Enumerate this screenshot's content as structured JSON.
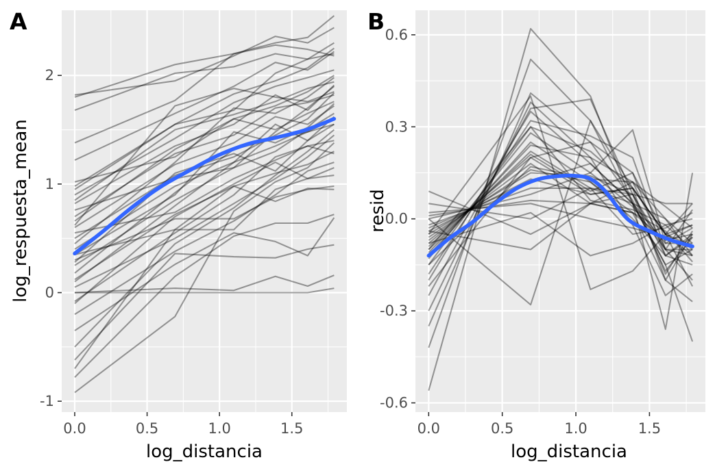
{
  "chart_data": [
    {
      "type": "line",
      "tag": "A",
      "xlabel": "log_distancia",
      "ylabel": "log_respuesta_mean",
      "xlim": [
        -0.09,
        1.88
      ],
      "ylim": [
        -1.1,
        2.6
      ],
      "xticks": [
        0.0,
        0.5,
        1.0,
        1.5
      ],
      "xtick_labels": [
        "0.0",
        "0.5",
        "1.0",
        "1.5"
      ],
      "yticks": [
        -1,
        0,
        1,
        2
      ],
      "ytick_labels": [
        "-1",
        "0",
        "1",
        "2"
      ],
      "grid": true,
      "x": [
        0.0,
        0.693,
        1.099,
        1.386,
        1.609,
        1.792
      ],
      "individual_color": "#000000",
      "individual_opacity": 0.38,
      "trend_color": "#3366FF",
      "trend": {
        "x": [
          0.0,
          0.2,
          0.4,
          0.6,
          0.8,
          1.0,
          1.2,
          1.4,
          1.6,
          1.792
        ],
        "y": [
          0.36,
          0.57,
          0.79,
          0.98,
          1.13,
          1.27,
          1.37,
          1.43,
          1.5,
          1.6
        ]
      },
      "series": [
        {
          "values": [
            1.8,
            2.1,
            2.2,
            2.3,
            2.35,
            2.55
          ]
        },
        {
          "values": [
            1.82,
            1.95,
            2.18,
            2.36,
            2.3,
            2.44
          ]
        },
        {
          "values": [
            1.68,
            2.02,
            2.08,
            2.2,
            2.15,
            2.3
          ]
        },
        {
          "values": [
            1.38,
            1.77,
            2.2,
            2.28,
            2.24,
            2.18
          ]
        },
        {
          "values": [
            1.22,
            1.65,
            1.9,
            2.12,
            2.05,
            2.22
          ]
        },
        {
          "values": [
            0.98,
            1.55,
            1.83,
            1.95,
            2.07,
            2.25
          ]
        },
        {
          "values": [
            0.9,
            1.42,
            1.75,
            1.9,
            1.98,
            2.05
          ]
        },
        {
          "values": [
            0.85,
            1.5,
            1.64,
            1.76,
            1.88,
            1.94
          ]
        },
        {
          "values": [
            0.82,
            1.35,
            1.55,
            1.82,
            1.68,
            1.91
          ]
        },
        {
          "values": [
            0.7,
            1.28,
            1.45,
            1.7,
            1.75,
            1.82
          ]
        },
        {
          "values": [
            0.66,
            1.32,
            1.6,
            1.5,
            1.65,
            1.76
          ]
        },
        {
          "values": [
            0.6,
            1.18,
            1.38,
            1.62,
            1.55,
            1.72
          ]
        },
        {
          "values": [
            0.55,
            0.74,
            1.05,
            1.22,
            1.35,
            1.28
          ]
        },
        {
          "values": [
            0.5,
            1.08,
            1.25,
            1.45,
            1.6,
            1.84
          ]
        },
        {
          "values": [
            0.45,
            1.2,
            1.7,
            1.65,
            1.8,
            1.98
          ]
        },
        {
          "values": [
            0.4,
            0.98,
            1.2,
            1.35,
            1.48,
            1.6
          ]
        },
        {
          "values": [
            0.35,
            0.9,
            1.48,
            1.38,
            1.52,
            1.74
          ]
        },
        {
          "values": [
            0.3,
            0.68,
            0.68,
            0.88,
            0.95,
            0.98
          ]
        },
        {
          "values": [
            0.25,
            0.85,
            1.15,
            1.3,
            1.5,
            1.65
          ]
        },
        {
          "values": [
            0.18,
            0.92,
            1.32,
            1.42,
            1.48,
            1.55
          ]
        },
        {
          "values": [
            0.12,
            0.72,
            0.98,
            1.1,
            1.18,
            1.3
          ]
        },
        {
          "values": [
            0.05,
            0.5,
            0.82,
            1.05,
            1.25,
            1.45
          ]
        },
        {
          "values": [
            0.0,
            0.04,
            0.02,
            0.15,
            0.06,
            0.16
          ]
        },
        {
          "values": [
            0.0,
            0.0,
            0.0,
            0.0,
            0.0,
            0.04
          ]
        },
        {
          "values": [
            -0.08,
            0.55,
            0.9,
            1.25,
            1.35,
            1.4
          ]
        },
        {
          "values": [
            -0.2,
            0.38,
            0.66,
            0.9,
            1.12,
            1.2
          ]
        },
        {
          "values": [
            -0.35,
            0.26,
            0.55,
            0.47,
            0.34,
            0.69
          ]
        },
        {
          "values": [
            -0.5,
            0.45,
            0.78,
            1.08,
            1.3,
            1.5
          ]
        },
        {
          "values": [
            -0.62,
            0.36,
            0.33,
            0.32,
            0.4,
            0.44
          ]
        },
        {
          "values": [
            -0.7,
            0.58,
            0.98,
            0.84,
            0.96,
            0.95
          ]
        },
        {
          "values": [
            -0.78,
            0.15,
            0.52,
            0.64,
            0.64,
            0.72
          ]
        },
        {
          "values": [
            -0.92,
            -0.22,
            0.75,
            1.02,
            1.15,
            1.38
          ]
        },
        {
          "values": [
            1.02,
            1.25,
            1.6,
            1.72,
            1.85,
            2.0
          ]
        },
        {
          "values": [
            0.76,
            1.05,
            1.15,
            1.48,
            1.7,
            1.9
          ]
        },
        {
          "values": [
            0.62,
            1.72,
            1.88,
            1.8,
            1.76,
            1.85
          ]
        },
        {
          "values": [
            0.28,
            1.1,
            1.28,
            1.12,
            1.4,
            1.62
          ]
        },
        {
          "values": [
            0.1,
            0.8,
            1.2,
            1.55,
            1.4,
            1.55
          ]
        },
        {
          "values": [
            -0.1,
            0.7,
            1.0,
            1.2,
            1.05,
            1.15
          ]
        },
        {
          "values": [
            0.35,
            0.58,
            0.58,
            0.95,
            1.05,
            1.08
          ]
        },
        {
          "values": [
            0.95,
            1.55,
            1.68,
            2.02,
            2.15,
            2.2
          ]
        }
      ]
    },
    {
      "type": "line",
      "tag": "B",
      "xlabel": "log_distancia",
      "ylabel": "resid",
      "xlim": [
        -0.09,
        1.88
      ],
      "ylim": [
        -0.63,
        0.68
      ],
      "xticks": [
        0.0,
        0.5,
        1.0,
        1.5
      ],
      "xtick_labels": [
        "0.0",
        "0.5",
        "1.0",
        "1.5"
      ],
      "yticks": [
        -0.6,
        -0.3,
        0.0,
        0.3,
        0.6
      ],
      "ytick_labels": [
        "-0.6",
        "-0.3",
        "0.0",
        "0.3",
        "0.6"
      ],
      "grid": true,
      "x": [
        0.0,
        0.693,
        1.099,
        1.386,
        1.609,
        1.792
      ],
      "individual_color": "#000000",
      "individual_opacity": 0.38,
      "trend_color": "#3366FF",
      "trend": {
        "x": [
          0.0,
          0.15,
          0.3,
          0.45,
          0.6,
          0.75,
          0.9,
          1.0,
          1.1,
          1.2,
          1.35,
          1.5,
          1.65,
          1.792
        ],
        "y": [
          -0.12,
          -0.06,
          -0.01,
          0.05,
          0.1,
          0.13,
          0.14,
          0.14,
          0.13,
          0.09,
          0.0,
          -0.04,
          -0.07,
          -0.09
        ]
      },
      "series": [
        {
          "values": [
            -0.56,
            0.62,
            0.4,
            0.05,
            -0.15,
            -0.4
          ]
        },
        {
          "values": [
            -0.42,
            0.52,
            0.32,
            0.1,
            -0.2,
            -0.27
          ]
        },
        {
          "values": [
            -0.35,
            0.41,
            0.25,
            0.15,
            -0.05,
            -0.22
          ]
        },
        {
          "values": [
            -0.3,
            0.38,
            0.2,
            0.12,
            -0.1,
            -0.2
          ]
        },
        {
          "values": [
            -0.25,
            0.36,
            0.39,
            0.08,
            -0.12,
            -0.15
          ]
        },
        {
          "values": [
            -0.2,
            0.35,
            0.18,
            0.05,
            0.0,
            -0.12
          ]
        },
        {
          "values": [
            -0.18,
            0.32,
            0.27,
            0.2,
            -0.1,
            -0.1
          ]
        },
        {
          "values": [
            -0.15,
            0.3,
            0.22,
            0.1,
            -0.05,
            0.05
          ]
        },
        {
          "values": [
            -0.13,
            0.28,
            0.15,
            0.29,
            -0.08,
            -0.08
          ]
        },
        {
          "values": [
            -0.12,
            0.25,
            0.12,
            0.02,
            -0.2,
            -0.05
          ]
        },
        {
          "values": [
            -0.1,
            0.22,
            0.1,
            0.05,
            -0.15,
            -0.1
          ]
        },
        {
          "values": [
            -0.08,
            0.2,
            0.08,
            0.1,
            -0.05,
            -0.02
          ]
        },
        {
          "values": [
            -0.07,
            0.18,
            0.05,
            0.08,
            -0.1,
            0.03
          ]
        },
        {
          "values": [
            -0.06,
            0.16,
            0.12,
            0.0,
            -0.12,
            -0.06
          ]
        },
        {
          "values": [
            -0.05,
            0.15,
            0.14,
            0.08,
            -0.18,
            -0.04
          ]
        },
        {
          "values": [
            -0.04,
            0.13,
            0.08,
            0.1,
            -0.05,
            -0.09
          ]
        },
        {
          "values": [
            -0.03,
            0.12,
            0.18,
            0.05,
            -0.08,
            -0.03
          ]
        },
        {
          "values": [
            -0.02,
            0.1,
            0.1,
            -0.05,
            -0.03,
            0.02
          ]
        },
        {
          "values": [
            0.0,
            0.08,
            0.15,
            0.04,
            -0.1,
            -0.12
          ]
        },
        {
          "values": [
            0.01,
            0.06,
            0.05,
            0.02,
            -0.07,
            -0.05
          ]
        },
        {
          "values": [
            0.02,
            0.05,
            0.0,
            -0.03,
            -0.06,
            -0.02
          ]
        },
        {
          "values": [
            0.05,
            0.0,
            0.1,
            0.08,
            0.05,
            0.05
          ]
        },
        {
          "values": [
            0.09,
            -0.05,
            0.05,
            0.12,
            0.0,
            -0.08
          ]
        },
        {
          "values": [
            0.0,
            -0.28,
            0.32,
            0.05,
            -0.36,
            0.15
          ]
        },
        {
          "values": [
            -0.05,
            0.4,
            -0.23,
            -0.17,
            -0.05,
            -0.12
          ]
        },
        {
          "values": [
            -0.09,
            0.21,
            0.09,
            0.15,
            -0.12,
            -0.05
          ]
        },
        {
          "values": [
            -0.11,
            0.24,
            0.2,
            -0.02,
            -0.25,
            -0.18
          ]
        },
        {
          "values": [
            -0.15,
            0.17,
            0.13,
            0.12,
            0.04,
            -0.03
          ]
        },
        {
          "values": [
            -0.08,
            0.02,
            -0.12,
            -0.08,
            -0.02,
            -0.1
          ]
        },
        {
          "values": [
            -0.22,
            0.2,
            0.25,
            0.06,
            -0.17,
            -0.06
          ]
        },
        {
          "values": [
            -0.04,
            -0.1,
            0.05,
            0.02,
            -0.04,
            -0.14
          ]
        },
        {
          "values": [
            -0.1,
            0.3,
            0.06,
            0.03,
            -0.02,
            0.0
          ]
        }
      ]
    }
  ]
}
